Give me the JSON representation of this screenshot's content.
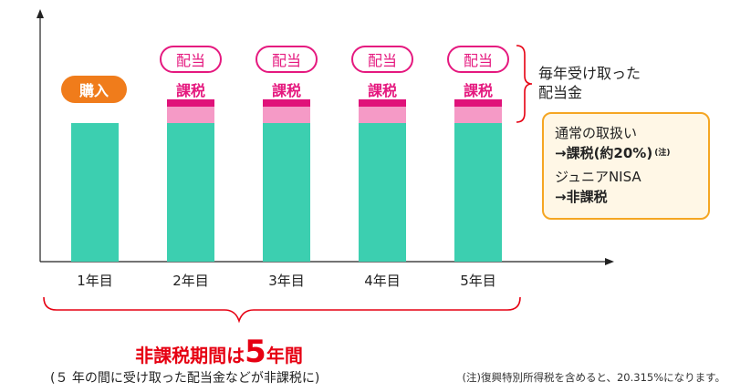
{
  "purchase_label": "購入",
  "dividend_label": "配当",
  "tax_label": "課税",
  "years": [
    "1年目",
    "2年目",
    "3年目",
    "4年目",
    "5年目"
  ],
  "annual_dividend_label": [
    "毎年受け取った",
    "配当金"
  ],
  "info_box": {
    "normal_title": "通常の取扱い",
    "normal_rate_prefix": "→",
    "normal_rate": "課税(約20%)",
    "normal_rate_note": "(注)",
    "nisa_title": "ジュニアNISA",
    "nisa_rate_prefix": "→",
    "nisa_rate": "非課税"
  },
  "period": {
    "prefix": "非課税期間は",
    "number": "5",
    "suffix": "年間"
  },
  "period_note": "(５ 年の間に受け取った配当金などが非課税に)",
  "footnote": "(注)復興特別所得税を含めると、20.315%になります。",
  "colors": {
    "principal": "#3ccfb0",
    "dividend_light": "#f59ac6",
    "dividend_dark": "#e0127a",
    "accent_pink": "#e5197f",
    "accent_orange": "#f07c1b",
    "accent_red": "#e60012",
    "box_border": "#f5a623",
    "box_fill": "#fff7e6"
  }
}
